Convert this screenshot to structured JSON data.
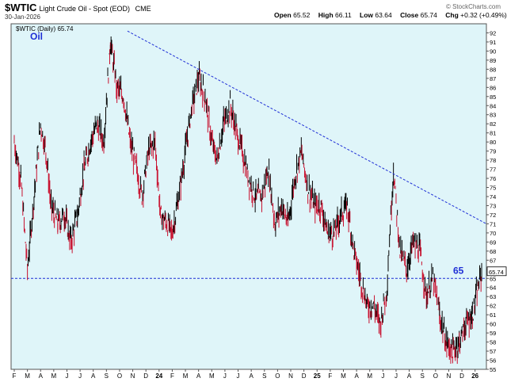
{
  "header": {
    "symbol": "$WTIC",
    "description": "Light Crude Oil - Spot (EOD)",
    "exchange": "CME",
    "date": "30-Jan-2026",
    "brand": "© StockCharts.com",
    "open_label": "Open",
    "open": "65.52",
    "high_label": "High",
    "high": "66.11",
    "low_label": "Low",
    "low": "63.64",
    "close_label": "Close",
    "close": "65.74",
    "chg_label": "Chg",
    "chg": "+0.32 (+0.49%)"
  },
  "chart_data": {
    "type": "line",
    "title": "$WTIC (Daily) 65.74",
    "annotation_text": "Oil",
    "level_label": "65",
    "last_price_label": "65.74",
    "ylim": [
      55,
      93
    ],
    "y_ticks": [
      55,
      56,
      57,
      58,
      59,
      60,
      61,
      62,
      63,
      64,
      65,
      66,
      67,
      68,
      69,
      70,
      71,
      72,
      73,
      74,
      75,
      76,
      77,
      78,
      79,
      80,
      81,
      82,
      83,
      84,
      85,
      86,
      87,
      88,
      89,
      90,
      91,
      92
    ],
    "x_tick_labels": [
      "F",
      "M",
      "A",
      "M",
      "J",
      "J",
      "A",
      "S",
      "O",
      "N",
      "D",
      "24",
      "F",
      "M",
      "A",
      "M",
      "J",
      "J",
      "A",
      "S",
      "O",
      "N",
      "D",
      "25",
      "F",
      "M",
      "A",
      "M",
      "J",
      "J",
      "A",
      "S",
      "O",
      "N",
      "D",
      "26"
    ],
    "grid": false,
    "colors": {
      "background": "#dff5f9",
      "up": "#000000",
      "down": "#c8102e",
      "trendline": "#1f2fd6",
      "label": "#1f2fd6"
    },
    "horizontal_line": 65,
    "trendline": {
      "start": 92.2,
      "end": 71.0
    },
    "price_path_x": [
      0,
      0.5,
      1,
      1.5,
      2,
      2.4,
      2.8,
      3.3,
      3.8,
      4.3,
      4.8,
      5.3,
      5.8,
      6.3,
      6.8,
      7.3,
      7.8,
      8.3,
      8.8,
      9.3,
      9.7,
      10.2,
      10.7,
      11.1,
      11.6,
      12,
      12.5,
      13,
      13.5,
      14,
      14.5,
      15,
      15.4,
      15.9,
      16.4,
      16.9,
      17.3,
      17.8,
      18.3,
      18.8,
      19.3,
      19.8,
      20.3,
      20.8,
      21.3,
      21.8,
      22.3,
      22.8,
      23.3,
      23.8,
      24.3,
      24.8,
      25.3,
      25.8,
      26.3,
      26.8,
      27.3,
      27.8,
      28.3,
      28.8,
      29.3,
      29.8,
      30.3,
      30.8,
      31.3,
      31.8,
      32.3,
      32.8,
      33.3,
      33.8,
      34.3,
      34.8,
      35.5
    ],
    "price_path_y": [
      80,
      76,
      66,
      74,
      82,
      79,
      73,
      71,
      72,
      69,
      72,
      77,
      80,
      82,
      80,
      91,
      86,
      85,
      80,
      77,
      74,
      79,
      80,
      72,
      71,
      70,
      74,
      79,
      84,
      87,
      85,
      80,
      78,
      82,
      84,
      81,
      79,
      76,
      74,
      74,
      77,
      71,
      73,
      71,
      76,
      79,
      75,
      73,
      73,
      70,
      70,
      72,
      73,
      68,
      65,
      62,
      62,
      60,
      64,
      77,
      68,
      66,
      69,
      68,
      63,
      65,
      61,
      58,
      57,
      58,
      60,
      61,
      65.7
    ]
  }
}
